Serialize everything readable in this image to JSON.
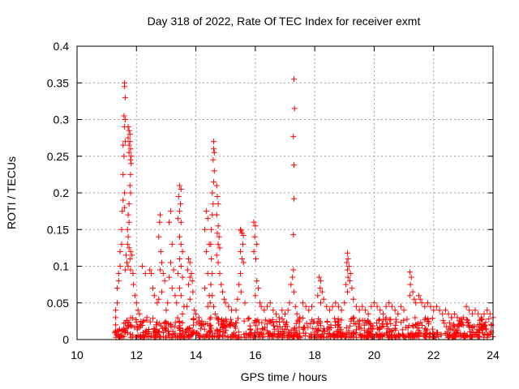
{
  "chart_data": {
    "type": "scatter",
    "title": "Day 318 of 2022, Rate Of TEC Index for receiver exmt",
    "xlabel": "GPS time / hours",
    "ylabel": "ROTI / TECUs",
    "xlim": [
      10,
      24
    ],
    "ylim": [
      0,
      0.4
    ],
    "xticks": [
      10,
      12,
      14,
      16,
      18,
      20,
      22,
      24
    ],
    "yticks": [
      0,
      0.05,
      0.1,
      0.15,
      0.2,
      0.25,
      0.3,
      0.35,
      0.4
    ],
    "xtick_labels": [
      "10",
      "12",
      "14",
      "16",
      "18",
      "20",
      "22",
      "24"
    ],
    "ytick_labels": [
      "0",
      "0.05",
      "0.1",
      "0.15",
      "0.2",
      "0.25",
      "0.3",
      "0.35",
      "0.4"
    ],
    "grid": true,
    "marker": "+",
    "marker_color": "#ff0000",
    "series": [
      {
        "name": "ROTI",
        "points": [
          [
            11.6,
            0.35
          ],
          [
            11.6,
            0.345
          ],
          [
            11.62,
            0.33
          ],
          [
            11.58,
            0.305
          ],
          [
            11.62,
            0.3
          ],
          [
            11.6,
            0.29
          ],
          [
            11.62,
            0.27
          ],
          [
            11.55,
            0.265
          ],
          [
            11.58,
            0.25
          ],
          [
            11.55,
            0.225
          ],
          [
            11.6,
            0.2
          ],
          [
            11.55,
            0.19
          ],
          [
            11.6,
            0.18
          ],
          [
            11.52,
            0.175
          ],
          [
            11.5,
            0.15
          ],
          [
            11.5,
            0.13
          ],
          [
            11.45,
            0.12
          ],
          [
            11.45,
            0.1
          ],
          [
            11.4,
            0.09
          ],
          [
            11.4,
            0.08
          ],
          [
            11.35,
            0.07
          ],
          [
            11.35,
            0.05
          ],
          [
            11.3,
            0.04
          ],
          [
            11.3,
            0.03
          ],
          [
            11.3,
            0.02
          ],
          [
            11.3,
            0.012
          ],
          [
            11.72,
            0.29
          ],
          [
            11.75,
            0.285
          ],
          [
            11.78,
            0.28
          ],
          [
            11.72,
            0.275
          ],
          [
            11.78,
            0.27
          ],
          [
            11.75,
            0.265
          ],
          [
            11.8,
            0.26
          ],
          [
            11.75,
            0.255
          ],
          [
            11.82,
            0.25
          ],
          [
            11.8,
            0.245
          ],
          [
            11.82,
            0.24
          ],
          [
            11.8,
            0.225
          ],
          [
            11.78,
            0.21
          ],
          [
            11.8,
            0.2
          ],
          [
            11.75,
            0.185
          ],
          [
            11.72,
            0.17
          ],
          [
            11.75,
            0.16
          ],
          [
            11.7,
            0.15
          ],
          [
            11.72,
            0.14
          ],
          [
            11.7,
            0.13
          ],
          [
            11.75,
            0.125
          ],
          [
            11.8,
            0.12
          ],
          [
            11.85,
            0.115
          ],
          [
            11.78,
            0.11
          ],
          [
            11.72,
            0.1
          ],
          [
            11.8,
            0.095
          ],
          [
            11.88,
            0.09
          ],
          [
            11.9,
            0.075
          ],
          [
            11.95,
            0.06
          ],
          [
            12.0,
            0.05
          ],
          [
            12.05,
            0.04
          ],
          [
            12.1,
            0.035
          ],
          [
            11.65,
            0.115
          ],
          [
            11.68,
            0.105
          ],
          [
            11.62,
            0.095
          ],
          [
            12.2,
            0.1
          ],
          [
            12.3,
            0.09
          ],
          [
            12.45,
            0.095
          ],
          [
            12.5,
            0.09
          ],
          [
            12.55,
            0.07
          ],
          [
            12.6,
            0.06
          ],
          [
            12.7,
            0.05
          ],
          [
            12.8,
            0.17
          ],
          [
            12.78,
            0.16
          ],
          [
            12.75,
            0.14
          ],
          [
            12.82,
            0.12
          ],
          [
            12.85,
            0.105
          ],
          [
            12.8,
            0.095
          ],
          [
            12.9,
            0.09
          ],
          [
            12.95,
            0.08
          ],
          [
            12.85,
            0.065
          ],
          [
            12.75,
            0.055
          ],
          [
            13.0,
            0.04
          ],
          [
            12.35,
            0.03
          ],
          [
            12.15,
            0.025
          ],
          [
            13.15,
            0.175
          ],
          [
            13.1,
            0.16
          ],
          [
            13.2,
            0.13
          ],
          [
            13.15,
            0.105
          ],
          [
            13.25,
            0.095
          ],
          [
            13.1,
            0.085
          ],
          [
            13.2,
            0.07
          ],
          [
            13.3,
            0.06
          ],
          [
            13.05,
            0.05
          ],
          [
            13.45,
            0.21
          ],
          [
            13.5,
            0.205
          ],
          [
            13.42,
            0.195
          ],
          [
            13.48,
            0.185
          ],
          [
            13.45,
            0.175
          ],
          [
            13.4,
            0.165
          ],
          [
            13.5,
            0.16
          ],
          [
            13.45,
            0.14
          ],
          [
            13.5,
            0.13
          ],
          [
            13.55,
            0.12
          ],
          [
            13.45,
            0.11
          ],
          [
            13.5,
            0.1
          ],
          [
            13.4,
            0.09
          ],
          [
            13.55,
            0.085
          ],
          [
            13.45,
            0.07
          ],
          [
            13.5,
            0.06
          ],
          [
            13.35,
            0.05
          ],
          [
            13.6,
            0.045
          ],
          [
            13.55,
            0.035
          ],
          [
            13.75,
            0.11
          ],
          [
            13.8,
            0.105
          ],
          [
            13.72,
            0.095
          ],
          [
            13.85,
            0.09
          ],
          [
            13.8,
            0.085
          ],
          [
            13.88,
            0.08
          ],
          [
            13.75,
            0.075
          ],
          [
            13.9,
            0.065
          ],
          [
            13.8,
            0.055
          ],
          [
            13.7,
            0.045
          ],
          [
            13.95,
            0.04
          ],
          [
            14.0,
            0.035
          ],
          [
            14.1,
            0.03
          ],
          [
            14.2,
            0.025
          ],
          [
            14.35,
            0.175
          ],
          [
            14.4,
            0.165
          ],
          [
            14.3,
            0.15
          ],
          [
            14.45,
            0.13
          ],
          [
            14.35,
            0.12
          ],
          [
            14.4,
            0.09
          ],
          [
            14.3,
            0.07
          ],
          [
            14.45,
            0.06
          ],
          [
            14.4,
            0.045
          ],
          [
            14.6,
            0.27
          ],
          [
            14.6,
            0.26
          ],
          [
            14.62,
            0.255
          ],
          [
            14.58,
            0.245
          ],
          [
            14.62,
            0.23
          ],
          [
            14.6,
            0.215
          ],
          [
            14.55,
            0.2
          ],
          [
            14.58,
            0.185
          ],
          [
            14.55,
            0.17
          ],
          [
            14.52,
            0.15
          ],
          [
            14.5,
            0.13
          ],
          [
            14.52,
            0.11
          ],
          [
            14.55,
            0.09
          ],
          [
            14.5,
            0.075
          ],
          [
            14.55,
            0.06
          ],
          [
            14.48,
            0.05
          ],
          [
            14.6,
            0.045
          ],
          [
            14.65,
            0.035
          ],
          [
            14.5,
            0.03
          ],
          [
            14.7,
            0.21
          ],
          [
            14.72,
            0.195
          ],
          [
            14.75,
            0.185
          ],
          [
            14.7,
            0.17
          ],
          [
            14.75,
            0.155
          ],
          [
            14.72,
            0.145
          ],
          [
            14.78,
            0.14
          ],
          [
            14.75,
            0.13
          ],
          [
            14.8,
            0.125
          ],
          [
            14.7,
            0.115
          ],
          [
            14.75,
            0.105
          ],
          [
            14.8,
            0.09
          ],
          [
            14.85,
            0.075
          ],
          [
            14.9,
            0.065
          ],
          [
            14.95,
            0.055
          ],
          [
            15.0,
            0.05
          ],
          [
            15.1,
            0.045
          ],
          [
            15.2,
            0.04
          ],
          [
            15.5,
            0.15
          ],
          [
            15.52,
            0.148
          ],
          [
            15.55,
            0.145
          ],
          [
            15.6,
            0.142
          ],
          [
            15.58,
            0.13
          ],
          [
            15.5,
            0.12
          ],
          [
            15.55,
            0.11
          ],
          [
            15.6,
            0.105
          ],
          [
            15.5,
            0.09
          ],
          [
            15.45,
            0.075
          ],
          [
            15.52,
            0.065
          ],
          [
            15.4,
            0.055
          ],
          [
            15.65,
            0.05
          ],
          [
            15.35,
            0.04
          ],
          [
            15.95,
            0.16
          ],
          [
            16.0,
            0.155
          ],
          [
            15.98,
            0.14
          ],
          [
            16.05,
            0.13
          ],
          [
            15.95,
            0.12
          ],
          [
            16.02,
            0.11
          ],
          [
            16.05,
            0.08
          ],
          [
            16.1,
            0.07
          ],
          [
            16.0,
            0.06
          ],
          [
            16.15,
            0.05
          ],
          [
            16.2,
            0.045
          ],
          [
            16.3,
            0.04
          ],
          [
            16.4,
            0.045
          ],
          [
            16.5,
            0.05
          ],
          [
            16.6,
            0.04
          ],
          [
            16.7,
            0.035
          ],
          [
            16.8,
            0.03
          ],
          [
            16.9,
            0.04
          ],
          [
            17.0,
            0.035
          ],
          [
            17.3,
            0.355
          ],
          [
            17.32,
            0.315
          ],
          [
            17.28,
            0.277
          ],
          [
            17.3,
            0.238
          ],
          [
            17.3,
            0.192
          ],
          [
            17.28,
            0.143
          ],
          [
            17.28,
            0.095
          ],
          [
            17.25,
            0.085
          ],
          [
            17.2,
            0.075
          ],
          [
            17.3,
            0.065
          ],
          [
            17.15,
            0.05
          ],
          [
            17.35,
            0.045
          ],
          [
            17.1,
            0.04
          ],
          [
            17.4,
            0.035
          ],
          [
            17.5,
            0.03
          ],
          [
            17.6,
            0.05
          ],
          [
            17.7,
            0.045
          ],
          [
            17.8,
            0.04
          ],
          [
            17.9,
            0.045
          ],
          [
            18.15,
            0.085
          ],
          [
            18.2,
            0.08
          ],
          [
            18.18,
            0.07
          ],
          [
            18.25,
            0.065
          ],
          [
            18.1,
            0.06
          ],
          [
            18.3,
            0.055
          ],
          [
            18.2,
            0.05
          ],
          [
            18.4,
            0.045
          ],
          [
            18.5,
            0.04
          ],
          [
            18.6,
            0.045
          ],
          [
            18.7,
            0.05
          ],
          [
            18.8,
            0.045
          ],
          [
            18.9,
            0.04
          ],
          [
            19.1,
            0.118
          ],
          [
            19.12,
            0.11
          ],
          [
            19.08,
            0.105
          ],
          [
            19.15,
            0.1
          ],
          [
            19.1,
            0.095
          ],
          [
            19.2,
            0.09
          ],
          [
            19.12,
            0.085
          ],
          [
            19.18,
            0.08
          ],
          [
            19.05,
            0.075
          ],
          [
            19.25,
            0.07
          ],
          [
            19.1,
            0.065
          ],
          [
            19.3,
            0.055
          ],
          [
            19.0,
            0.05
          ],
          [
            19.4,
            0.045
          ],
          [
            19.5,
            0.04
          ],
          [
            19.6,
            0.045
          ],
          [
            19.7,
            0.04
          ],
          [
            19.8,
            0.035
          ],
          [
            19.9,
            0.045
          ],
          [
            20.0,
            0.05
          ],
          [
            20.1,
            0.045
          ],
          [
            20.2,
            0.04
          ],
          [
            20.3,
            0.035
          ],
          [
            20.4,
            0.045
          ],
          [
            20.5,
            0.05
          ],
          [
            20.6,
            0.045
          ],
          [
            20.7,
            0.04
          ],
          [
            20.8,
            0.035
          ],
          [
            20.9,
            0.045
          ],
          [
            21.0,
            0.04
          ],
          [
            21.2,
            0.092
          ],
          [
            21.25,
            0.085
          ],
          [
            21.22,
            0.075
          ],
          [
            21.3,
            0.065
          ],
          [
            21.2,
            0.06
          ],
          [
            21.35,
            0.055
          ],
          [
            21.4,
            0.05
          ],
          [
            21.5,
            0.06
          ],
          [
            21.55,
            0.055
          ],
          [
            21.6,
            0.05
          ],
          [
            21.7,
            0.045
          ],
          [
            21.8,
            0.05
          ],
          [
            21.9,
            0.045
          ],
          [
            22.0,
            0.04
          ],
          [
            22.1,
            0.045
          ],
          [
            22.2,
            0.04
          ],
          [
            22.3,
            0.035
          ],
          [
            22.4,
            0.04
          ],
          [
            22.5,
            0.035
          ],
          [
            22.6,
            0.03
          ],
          [
            22.7,
            0.035
          ],
          [
            22.8,
            0.03
          ],
          [
            22.9,
            0.025
          ],
          [
            23.0,
            0.03
          ],
          [
            23.1,
            0.045
          ],
          [
            23.2,
            0.04
          ],
          [
            23.3,
            0.035
          ],
          [
            23.4,
            0.04
          ],
          [
            23.5,
            0.035
          ],
          [
            23.6,
            0.03
          ],
          [
            23.7,
            0.035
          ],
          [
            23.8,
            0.04
          ],
          [
            23.9,
            0.035
          ],
          [
            24.0,
            0.03
          ]
        ],
        "dense_band": {
          "x_range": [
            11.25,
            24.0
          ],
          "y_range": [
            0.003,
            0.03
          ],
          "count": 900
        }
      }
    ]
  }
}
